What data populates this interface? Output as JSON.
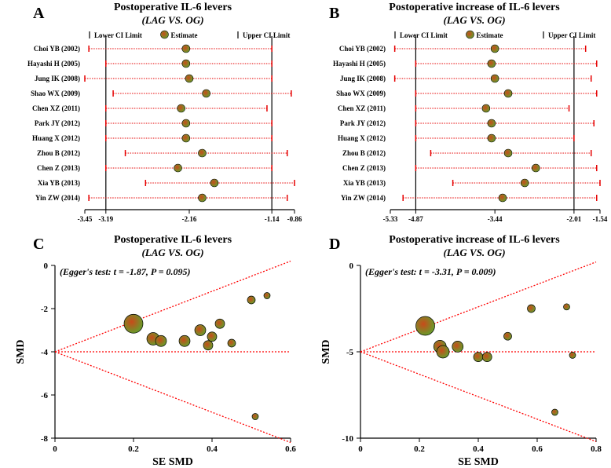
{
  "panels": {
    "A": {
      "label": "A",
      "title": "Postoperative IL-6 levers",
      "subtitle": "(LAG VS. OG)",
      "legend": {
        "lower": "Lower CI Limit",
        "estimate": "Estimate",
        "upper": "Upper CI Limit"
      },
      "xlim": [
        -3.45,
        -0.86
      ],
      "xticks": [
        -3.45,
        -3.19,
        -2.16,
        -1.14,
        -0.86
      ],
      "tick_fontsize": 9,
      "pooled": -2.16,
      "series_color_center": "#c94a1a",
      "series_color_outer": "#6a9a2a",
      "ci_color": "#e60000",
      "studies": [
        {
          "name": "Choi YB (2002)",
          "est": -2.2,
          "lo": -3.4,
          "hi": -1.14
        },
        {
          "name": "Hayashi H (2005)",
          "est": -2.2,
          "lo": -3.19,
          "hi": -1.14
        },
        {
          "name": "Jung IK (2008)",
          "est": -2.16,
          "lo": -3.45,
          "hi": -1.14
        },
        {
          "name": "Shao WX (2009)",
          "est": -1.95,
          "lo": -3.1,
          "hi": -0.9
        },
        {
          "name": "Chen XZ (2011)",
          "est": -2.26,
          "lo": -3.19,
          "hi": -1.2
        },
        {
          "name": "Park JY (2012)",
          "est": -2.2,
          "lo": -3.19,
          "hi": -1.14
        },
        {
          "name": "Huang X (2012)",
          "est": -2.2,
          "lo": -3.19,
          "hi": -1.14
        },
        {
          "name": "Zhou B (2012)",
          "est": -2.0,
          "lo": -2.95,
          "hi": -0.95
        },
        {
          "name": "Chen Z (2013)",
          "est": -2.3,
          "lo": -3.19,
          "hi": -1.14
        },
        {
          "name": "Xia YB (2013)",
          "est": -1.85,
          "lo": -2.7,
          "hi": -0.86
        },
        {
          "name": "Yin ZW (2014)",
          "est": -2.0,
          "lo": -3.4,
          "hi": -0.95
        }
      ]
    },
    "B": {
      "label": "B",
      "title": "Postoperative increase of IL-6 levers",
      "subtitle": "(LAG VS. OG)",
      "legend": {
        "lower": "Lower CI Limit",
        "estimate": "Estimate",
        "upper": "Upper CI Limit"
      },
      "xlim": [
        -5.33,
        -1.54
      ],
      "xticks": [
        -5.33,
        -4.87,
        -3.44,
        -2.01,
        -1.54
      ],
      "tick_fontsize": 9,
      "pooled": -3.44,
      "series_color_center": "#c94a1a",
      "series_color_outer": "#6a9a2a",
      "ci_color": "#e60000",
      "studies": [
        {
          "name": "Choi YB (2002)",
          "est": -3.44,
          "lo": -5.25,
          "hi": -1.8
        },
        {
          "name": "Hayashi H (2005)",
          "est": -3.5,
          "lo": -4.87,
          "hi": -1.6
        },
        {
          "name": "Jung IK (2008)",
          "est": -3.44,
          "lo": -5.25,
          "hi": -1.7
        },
        {
          "name": "Shao WX (2009)",
          "est": -3.2,
          "lo": -4.87,
          "hi": -1.6
        },
        {
          "name": "Chen XZ (2011)",
          "est": -3.6,
          "lo": -4.87,
          "hi": -2.1
        },
        {
          "name": "Park JY (2012)",
          "est": -3.5,
          "lo": -4.87,
          "hi": -1.65
        },
        {
          "name": "Huang X (2012)",
          "est": -3.5,
          "lo": -4.87,
          "hi": -2.01
        },
        {
          "name": "Zhou B (2012)",
          "est": -3.2,
          "lo": -4.6,
          "hi": -1.7
        },
        {
          "name": "Chen Z (2013)",
          "est": -2.7,
          "lo": -4.87,
          "hi": -1.6
        },
        {
          "name": "Xia YB (2013)",
          "est": -2.9,
          "lo": -4.2,
          "hi": -1.54
        },
        {
          "name": "Yin ZW (2014)",
          "est": -3.3,
          "lo": -5.1,
          "hi": -1.6
        }
      ]
    },
    "C": {
      "label": "C",
      "title": "Postoperative IL-6 levers",
      "subtitle": "(LAG VS. OG)",
      "eggers": "(Egger's test: t = -1.87, P = 0.095)",
      "xlabel": "SE SMD",
      "ylabel": "SMD",
      "xlim": [
        0,
        0.6
      ],
      "ylim": [
        -8,
        0
      ],
      "xticks": [
        0,
        0.2,
        0.4,
        0.6
      ],
      "yticks": [
        0,
        -2,
        -4,
        -6,
        -8
      ],
      "tick_fontsize": 11,
      "funnel_color": "#ff0000",
      "funnel_dash": "2,2",
      "funnel_center": -4,
      "funnel_slope": 7,
      "point_color_center": "#c94a1a",
      "point_color_outer": "#6a9a2a",
      "points": [
        {
          "x": 0.2,
          "y": -2.7,
          "r": 12
        },
        {
          "x": 0.25,
          "y": -3.4,
          "r": 8
        },
        {
          "x": 0.27,
          "y": -3.5,
          "r": 7
        },
        {
          "x": 0.33,
          "y": -3.5,
          "r": 7
        },
        {
          "x": 0.37,
          "y": -3.0,
          "r": 7
        },
        {
          "x": 0.39,
          "y": -3.7,
          "r": 6
        },
        {
          "x": 0.4,
          "y": -3.3,
          "r": 6
        },
        {
          "x": 0.42,
          "y": -2.7,
          "r": 6
        },
        {
          "x": 0.45,
          "y": -3.6,
          "r": 5
        },
        {
          "x": 0.5,
          "y": -1.6,
          "r": 5
        },
        {
          "x": 0.51,
          "y": -7.0,
          "r": 4
        },
        {
          "x": 0.54,
          "y": -1.4,
          "r": 4
        }
      ]
    },
    "D": {
      "label": "D",
      "title": "Postoperative increase of IL-6 levers",
      "subtitle": "(LAG VS. OG)",
      "eggers": "(Egger's test: t = -3.31, P = 0.009)",
      "xlabel": "SE SMD",
      "ylabel": "SMD",
      "xlim": [
        0,
        0.8
      ],
      "ylim": [
        -10,
        0
      ],
      "xticks": [
        0,
        0.2,
        0.4,
        0.6,
        0.8
      ],
      "yticks": [
        0,
        -5,
        -10
      ],
      "tick_fontsize": 11,
      "funnel_color": "#ff0000",
      "funnel_dash": "2,2",
      "funnel_center": -5,
      "funnel_slope": 6.5,
      "point_color_center": "#c94a1a",
      "point_color_outer": "#6a9a2a",
      "points": [
        {
          "x": 0.22,
          "y": -3.5,
          "r": 12
        },
        {
          "x": 0.27,
          "y": -4.7,
          "r": 8
        },
        {
          "x": 0.28,
          "y": -5.0,
          "r": 8
        },
        {
          "x": 0.33,
          "y": -4.7,
          "r": 7
        },
        {
          "x": 0.4,
          "y": -5.3,
          "r": 6
        },
        {
          "x": 0.43,
          "y": -5.3,
          "r": 6
        },
        {
          "x": 0.5,
          "y": -4.1,
          "r": 5
        },
        {
          "x": 0.58,
          "y": -2.5,
          "r": 5
        },
        {
          "x": 0.66,
          "y": -8.5,
          "r": 4
        },
        {
          "x": 0.7,
          "y": -2.4,
          "r": 4
        },
        {
          "x": 0.72,
          "y": -5.2,
          "r": 4
        }
      ]
    }
  }
}
